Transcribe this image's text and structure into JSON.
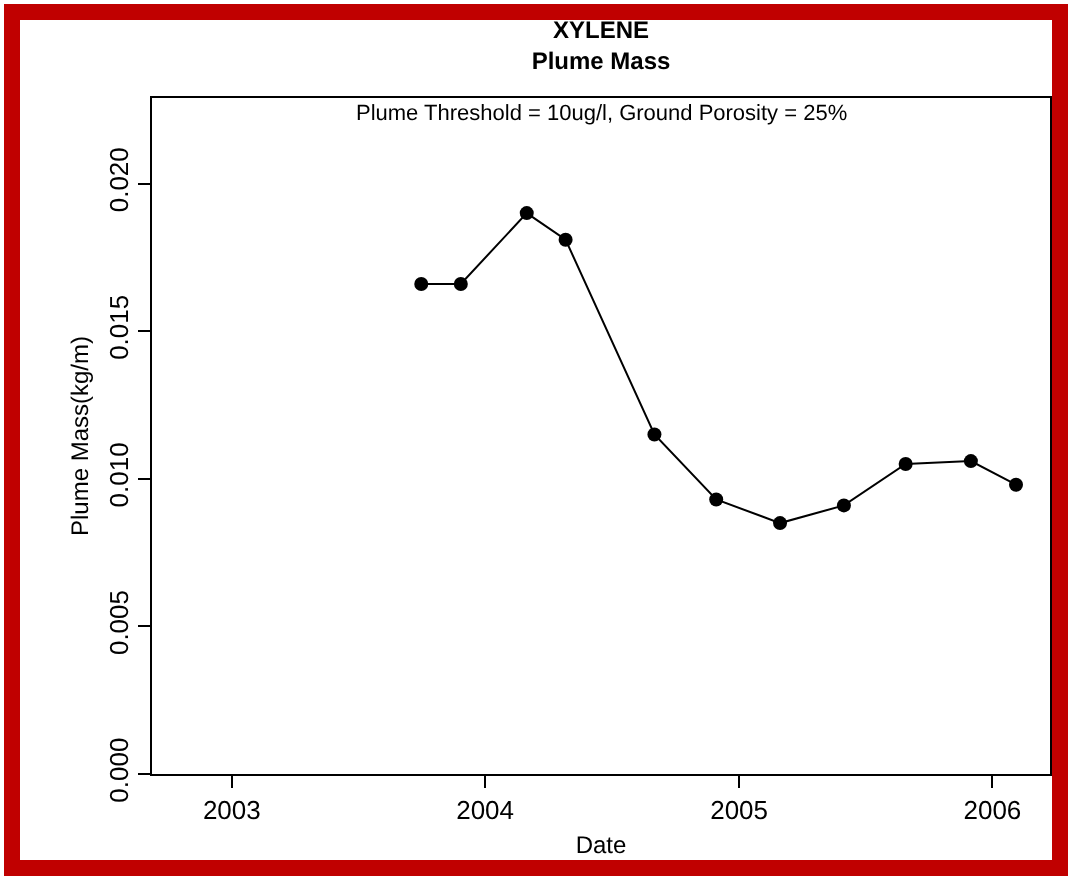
{
  "chart_data": {
    "type": "line",
    "title": "XYLENE\nPlume Mass",
    "subtitle": "Plume Threshold = 10ug/l, Ground Porosity = 25%",
    "xlabel": "Date",
    "ylabel": "Plume Mass(kg/m)",
    "x": [
      "2003-10-01",
      "2003-11-27",
      "2004-03-01",
      "2004-04-26",
      "2004-09-01",
      "2004-11-29",
      "2005-03-01",
      "2005-06-01",
      "2005-08-29",
      "2005-12-01",
      "2006-02-04"
    ],
    "series": [
      {
        "color": "#000000",
        "values": [
          0.0166,
          0.0166,
          0.019,
          0.0181,
          0.0115,
          0.0093,
          0.0085,
          0.0091,
          0.0105,
          0.0106,
          0.0098
        ]
      }
    ],
    "xlim": [
      "2002-09-08",
      "2006-03-25"
    ],
    "xticks": [
      {
        "value": "2003-01-01",
        "label": "2003"
      },
      {
        "value": "2004-01-01",
        "label": "2004"
      },
      {
        "value": "2005-01-01",
        "label": "2005"
      },
      {
        "value": "2006-01-01",
        "label": "2006"
      }
    ],
    "ylim": [
      0,
      0.0229
    ],
    "yticks": [
      {
        "value": 0,
        "label": "0.000"
      },
      {
        "value": 0.005,
        "label": "0.005"
      },
      {
        "value": 0.01,
        "label": "0.010"
      },
      {
        "value": 0.015,
        "label": "0.015"
      },
      {
        "value": 0.02,
        "label": "0.020"
      }
    ],
    "grid": false,
    "marker": "circle",
    "line_style": "solid"
  }
}
